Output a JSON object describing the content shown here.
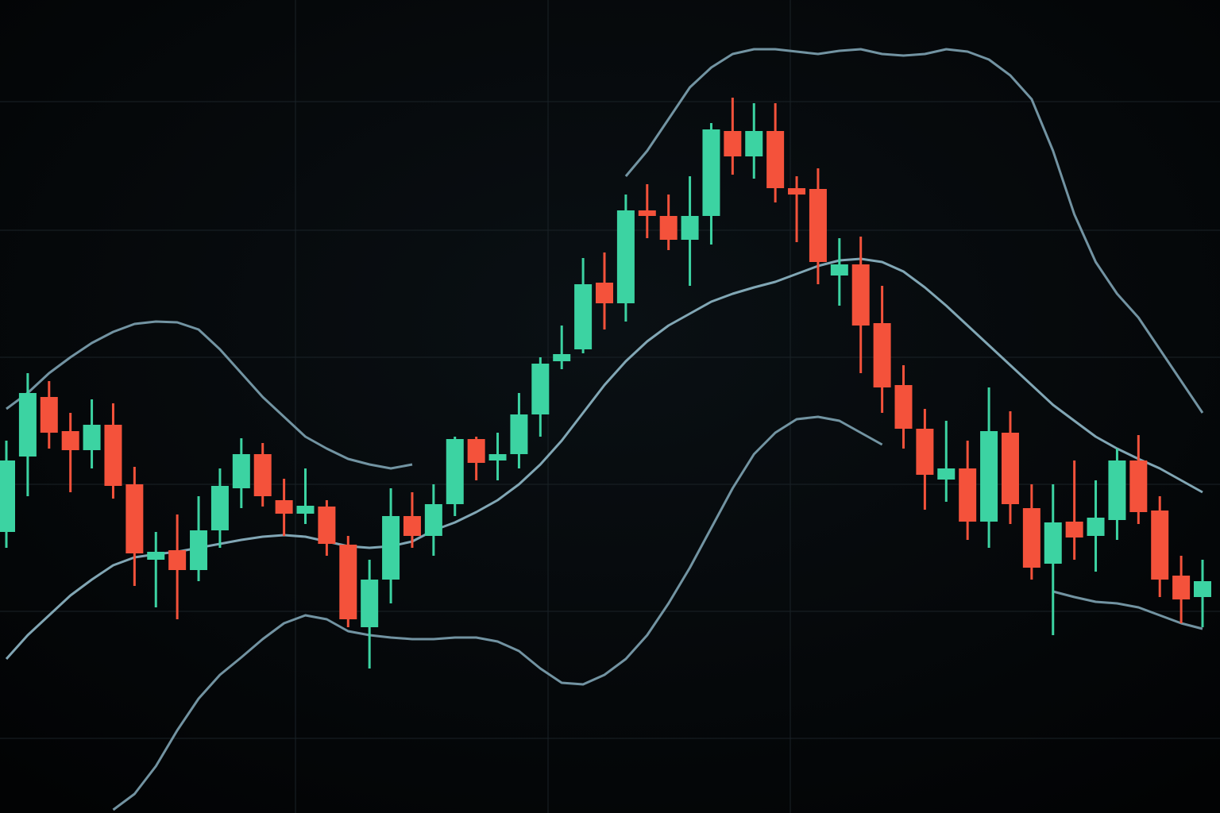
{
  "chart_data": {
    "type": "candlestick",
    "categories": [
      null,
      null,
      null,
      null,
      null,
      null,
      null,
      null,
      null,
      null,
      null,
      null,
      null,
      null,
      null,
      null,
      null,
      null,
      null,
      null,
      null,
      null,
      null,
      null,
      null,
      null,
      null,
      null,
      null,
      null,
      null,
      null,
      null,
      null,
      null,
      null,
      null,
      null,
      null,
      null,
      null,
      null,
      null,
      null,
      null,
      null,
      null,
      null,
      null,
      null,
      null,
      null,
      null,
      null,
      null,
      null,
      null
    ],
    "open": [
      354,
      449,
      524,
      481,
      457,
      489,
      414,
      319,
      331,
      306,
      356,
      409,
      452,
      394,
      377,
      386,
      338,
      234,
      294,
      374,
      349,
      389,
      471,
      444,
      452,
      502,
      569,
      584,
      668,
      642,
      759,
      752,
      722,
      752,
      859,
      827,
      859,
      787,
      786,
      677,
      691,
      617,
      539,
      484,
      420,
      434,
      367,
      479,
      384,
      314,
      367,
      349,
      369,
      444,
      381,
      299,
      272
    ],
    "close": [
      444,
      529,
      479,
      457,
      489,
      412,
      327,
      329,
      306,
      356,
      412,
      452,
      399,
      377,
      387,
      339,
      244,
      294,
      374,
      349,
      389,
      471,
      441,
      452,
      502,
      566,
      578,
      666,
      642,
      759,
      752,
      722,
      752,
      861,
      827,
      859,
      787,
      779,
      694,
      691,
      614,
      536,
      484,
      426,
      434,
      367,
      481,
      389,
      309,
      366,
      347,
      372,
      444,
      379,
      294,
      269,
      292
    ],
    "high": [
      469,
      554,
      544,
      504,
      521,
      516,
      436,
      354,
      376,
      399,
      434,
      472,
      466,
      421,
      434,
      394,
      349,
      319,
      409,
      404,
      414,
      474,
      474,
      479,
      529,
      574,
      614,
      699,
      706,
      779,
      792,
      779,
      802,
      869,
      901,
      894,
      894,
      802,
      812,
      724,
      726,
      664,
      564,
      509,
      494,
      469,
      536,
      506,
      414,
      414,
      444,
      419,
      459,
      476,
      399,
      324,
      319
    ],
    "low": [
      334,
      399,
      459,
      404,
      434,
      396,
      286,
      259,
      244,
      292,
      334,
      384,
      386,
      349,
      364,
      324,
      234,
      182,
      264,
      334,
      324,
      374,
      419,
      419,
      434,
      474,
      559,
      579,
      609,
      619,
      724,
      709,
      664,
      716,
      804,
      799,
      769,
      719,
      666,
      639,
      554,
      504,
      459,
      382,
      392,
      344,
      334,
      364,
      294,
      224,
      319,
      304,
      344,
      364,
      272,
      239,
      234
    ],
    "up_color": "#3cd3a2",
    "down_color": "#f4523b",
    "series": [
      {
        "color": "#7ea3b3",
        "values": [
          509,
          529,
          554,
          574,
          592,
          606,
          616,
          619,
          618,
          609,
          584,
          554,
          524,
          499,
          474,
          459,
          446,
          439,
          434,
          439,
          null,
          null,
          null,
          null,
          null,
          null,
          null,
          null,
          null,
          802,
          834,
          874,
          914,
          939,
          956,
          962,
          962,
          959,
          956,
          960,
          962,
          956,
          954,
          956,
          962,
          959,
          949,
          929,
          899,
          834,
          754,
          694,
          654,
          624,
          584,
          544,
          504
        ]
      },
      {
        "color": "#8fb8c8",
        "values": [
          194,
          224,
          249,
          274,
          294,
          312,
          322,
          326,
          329,
          334,
          339,
          344,
          348,
          350,
          348,
          342,
          336,
          334,
          336,
          342,
          356,
          366,
          379,
          394,
          414,
          439,
          469,
          504,
          539,
          569,
          594,
          614,
          629,
          644,
          654,
          662,
          669,
          679,
          689,
          696,
          698,
          694,
          682,
          662,
          639,
          614,
          589,
          564,
          539,
          514,
          494,
          474,
          459,
          446,
          434,
          419,
          404
        ]
      },
      {
        "color": "#7ea3b3",
        "values": [
          null,
          null,
          null,
          null,
          null,
          4,
          24,
          59,
          104,
          144,
          174,
          196,
          219,
          239,
          249,
          244,
          229,
          224,
          221,
          219,
          219,
          221,
          221,
          216,
          204,
          182,
          164,
          162,
          174,
          194,
          224,
          264,
          309,
          359,
          409,
          452,
          479,
          496,
          499,
          494,
          479,
          464,
          null,
          null,
          null,
          null,
          null,
          null,
          null,
          279,
          272,
          266,
          264,
          259,
          249,
          239,
          232
        ]
      }
    ],
    "ylim": [
      0,
      1024
    ]
  }
}
